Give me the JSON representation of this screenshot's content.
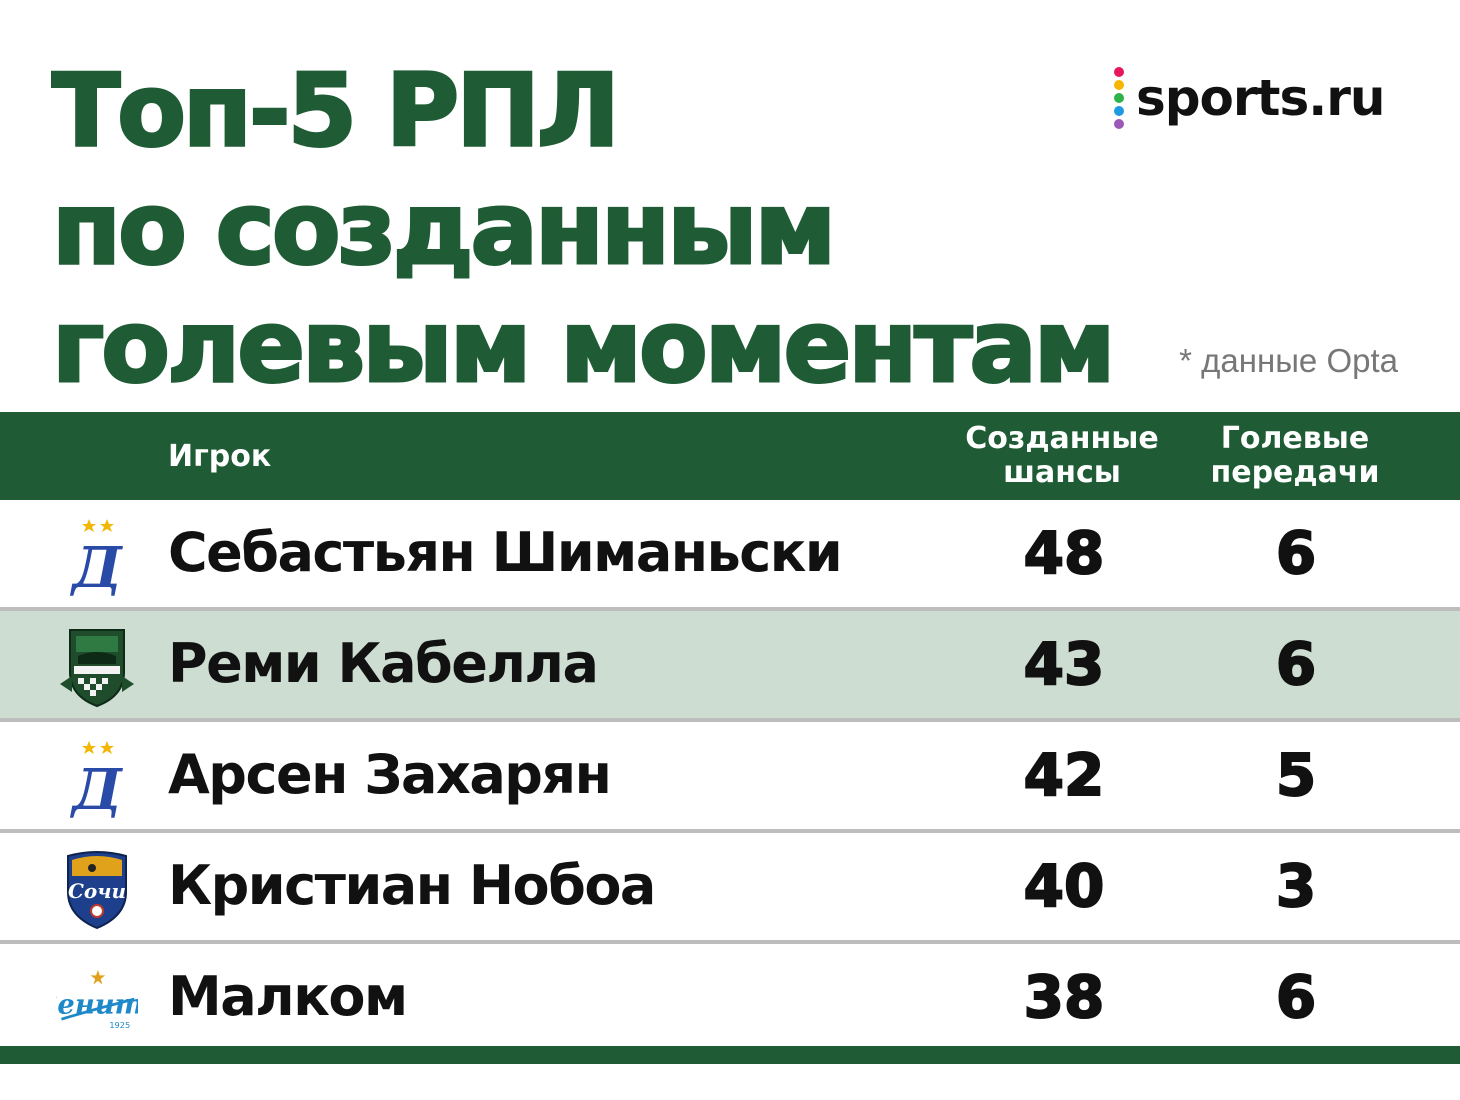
{
  "title": {
    "lines": [
      "Топ-5 РПЛ",
      "по созданным",
      "голевым моментам"
    ]
  },
  "brand": {
    "name": "sports.ru",
    "dot_colors": [
      "#e8175d",
      "#f7b500",
      "#2db34a",
      "#1e9be0",
      "#9b59b6"
    ]
  },
  "source_note": "* данные Opta",
  "colors": {
    "accent": "#1f5c35",
    "highlight_row": "#cdddd2",
    "divider": "#bdbdbd"
  },
  "table": {
    "headers": {
      "player": "Игрок",
      "chances": [
        "Созданные",
        "шансы"
      ],
      "assists": [
        "Голевые",
        "передачи"
      ]
    },
    "rows": [
      {
        "club_icon": "dynamo-crest-icon",
        "name": "Себастьян Шиманьски",
        "chances": "48",
        "assists": "6",
        "highlight": false
      },
      {
        "club_icon": "krasnodar-crest-icon",
        "name": "Реми Кабелла",
        "chances": "43",
        "assists": "6",
        "highlight": true
      },
      {
        "club_icon": "dynamo-crest-icon",
        "name": "Арсен Захарян",
        "chances": "42",
        "assists": "5",
        "highlight": false
      },
      {
        "club_icon": "sochi-crest-icon",
        "name": "Кристиан Нобоа",
        "chances": "40",
        "assists": "3",
        "highlight": false
      },
      {
        "club_icon": "zenit-crest-icon",
        "name": "Малком",
        "chances": "38",
        "assists": "6",
        "highlight": false
      }
    ]
  }
}
